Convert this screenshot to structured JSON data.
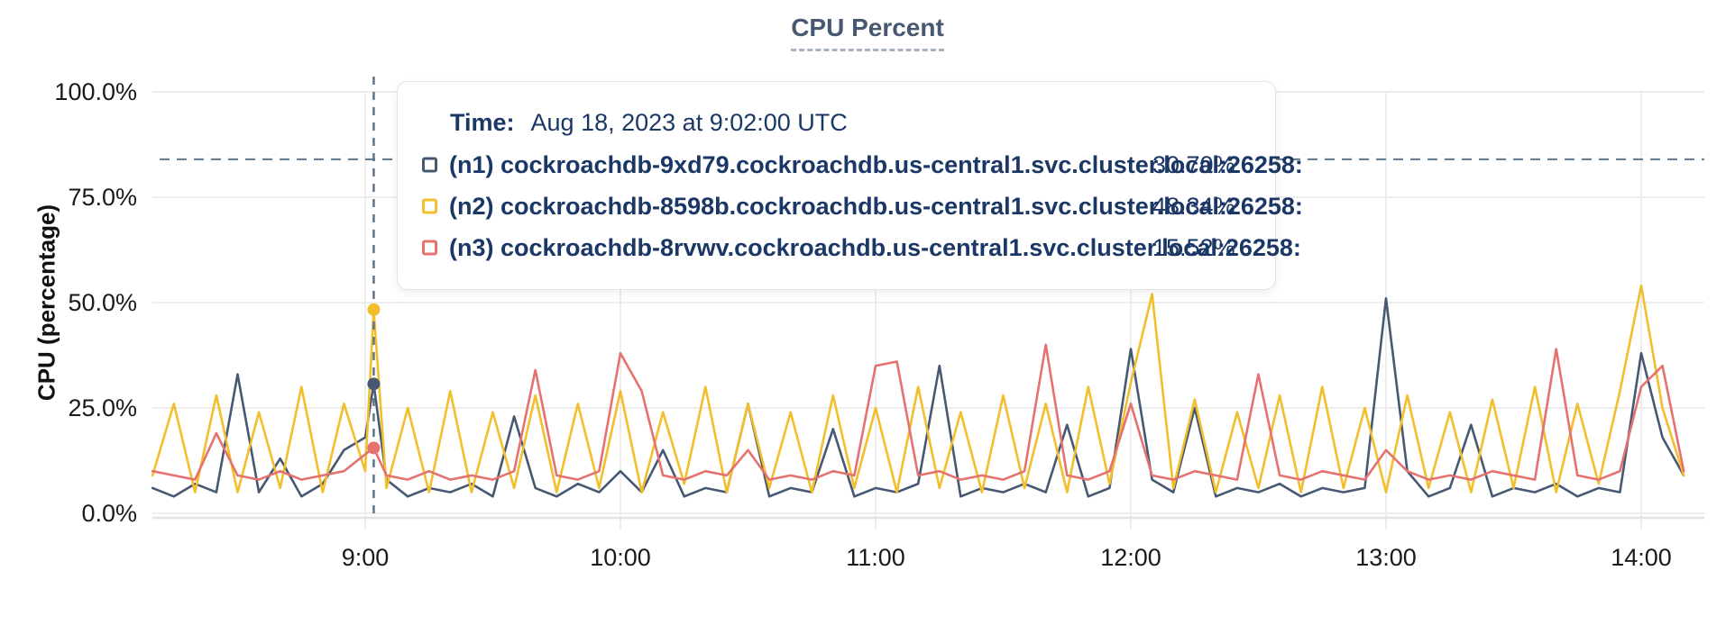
{
  "title": "CPU Percent",
  "y_axis_title": "CPU (percentage)",
  "tooltip": {
    "time_label": "Time:",
    "time_value": "Aug 18, 2023 at 9:02:00 UTC",
    "rows": [
      {
        "name": "(n1) cockroachdb-9xd79.cockroachdb.us-central1.svc.cluster.local:26258:",
        "value": "30.70%",
        "color": "#475872"
      },
      {
        "name": "(n2) cockroachdb-8598b.cockroachdb.us-central1.svc.cluster.local:26258:",
        "value": "48.34%",
        "color": "#F2BE2C"
      },
      {
        "name": "(n3) cockroachdb-8rvwv.cockroachdb.us-central1.svc.cluster.local:26258:",
        "value": "15.52%",
        "color": "#E5726F"
      }
    ]
  },
  "colors": {
    "n1": "#475872",
    "n2": "#F2BE2C",
    "n3": "#E5726F",
    "guide": "#5F7589",
    "grid": "#ededed",
    "axis_border": "#e3e3e3",
    "title": "#475872",
    "tooltip_text": "#1b3766"
  },
  "chart_data": {
    "type": "line",
    "title": "CPU Percent",
    "xlabel": "",
    "ylabel": "CPU (percentage)",
    "ylim": [
      0,
      100
    ],
    "grid": true,
    "legend_position": "tooltip",
    "ytick_values": [
      0,
      25,
      50,
      75,
      100
    ],
    "ytick_labels": [
      "0.0%",
      "25.0%",
      "50.0%",
      "75.0%",
      "100.0%"
    ],
    "xtick_labels": [
      "9:00",
      "10:00",
      "11:00",
      "12:00",
      "13:00",
      "14:00"
    ],
    "xtick_minutes": [
      50,
      110,
      170,
      230,
      290,
      350
    ],
    "x_minutes_since_start": {
      "note": "0 = left edge of plotted data, 9:00 = 50",
      "range": [
        0,
        362
      ]
    },
    "threshold_percent": 84,
    "hover": {
      "t": 52,
      "time": "Aug 18, 2023 at 9:02:00 UTC",
      "values": [
        30.7,
        48.34,
        15.52
      ]
    },
    "t": [
      0,
      5,
      10,
      15,
      20,
      25,
      30,
      35,
      40,
      45,
      50,
      52,
      55,
      60,
      65,
      70,
      75,
      80,
      85,
      90,
      95,
      100,
      105,
      110,
      115,
      120,
      125,
      130,
      135,
      140,
      145,
      150,
      155,
      160,
      165,
      170,
      175,
      180,
      185,
      190,
      195,
      200,
      205,
      210,
      215,
      220,
      225,
      230,
      235,
      240,
      245,
      250,
      255,
      260,
      265,
      270,
      275,
      280,
      285,
      290,
      295,
      300,
      305,
      310,
      315,
      320,
      325,
      330,
      335,
      340,
      345,
      350,
      355,
      360
    ],
    "series": [
      {
        "name": "(n1) cockroachdb-9xd79.cockroachdb.us-central1.svc.cluster.local:26258",
        "color": "#475872",
        "values": [
          6,
          4,
          7,
          5,
          33,
          5,
          13,
          4,
          7,
          15,
          18,
          30.7,
          8,
          4,
          6,
          5,
          7,
          4,
          23,
          6,
          4,
          7,
          5,
          10,
          5,
          15,
          4,
          6,
          5,
          26,
          4,
          6,
          5,
          20,
          4,
          6,
          5,
          7,
          35,
          4,
          6,
          5,
          7,
          5,
          21,
          4,
          6,
          39,
          8,
          5,
          25,
          4,
          6,
          5,
          7,
          4,
          6,
          5,
          6,
          51,
          10,
          4,
          6,
          21,
          4,
          6,
          5,
          7,
          4,
          6,
          5,
          38,
          18,
          9
        ]
      },
      {
        "name": "(n2) cockroachdb-8598b.cockroachdb.us-central1.svc.cluster.local:26258",
        "color": "#F2BE2C",
        "values": [
          9,
          26,
          5,
          28,
          5,
          24,
          6,
          30,
          5,
          26,
          10,
          48.34,
          6,
          25,
          5,
          29,
          5,
          24,
          6,
          28,
          5,
          26,
          6,
          29,
          5,
          24,
          7,
          30,
          5,
          26,
          6,
          24,
          5,
          28,
          6,
          25,
          5,
          30,
          6,
          24,
          5,
          28,
          6,
          26,
          5,
          30,
          7,
          31,
          52,
          6,
          27,
          5,
          24,
          6,
          28,
          5,
          30,
          6,
          25,
          5,
          28,
          6,
          24,
          5,
          27,
          6,
          30,
          5,
          26,
          7,
          29,
          54,
          25,
          9
        ]
      },
      {
        "name": "(n3) cockroachdb-8rvwv.cockroachdb.us-central1.svc.cluster.local:26258",
        "color": "#E5726F",
        "values": [
          10,
          9,
          8,
          19,
          9,
          8,
          10,
          8,
          9,
          10,
          14,
          15.52,
          9,
          8,
          10,
          8,
          9,
          8,
          10,
          34,
          9,
          8,
          10,
          38,
          29,
          9,
          8,
          10,
          9,
          15,
          8,
          9,
          8,
          10,
          9,
          35,
          36,
          9,
          10,
          8,
          9,
          8,
          10,
          40,
          9,
          8,
          10,
          26,
          9,
          8,
          10,
          9,
          8,
          33,
          9,
          8,
          10,
          9,
          8,
          15,
          10,
          8,
          9,
          8,
          10,
          9,
          8,
          39,
          9,
          8,
          10,
          30,
          35,
          10
        ]
      }
    ]
  }
}
